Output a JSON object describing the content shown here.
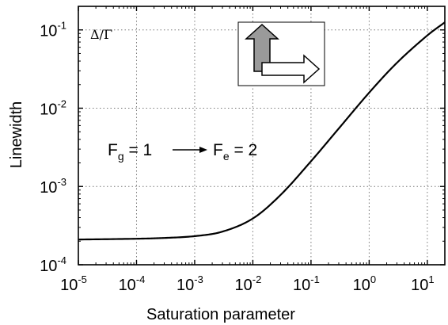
{
  "chart_data": {
    "type": "line",
    "xlabel": "Saturation parameter",
    "ylabel": "Linewidth",
    "x_scale": "log",
    "y_scale": "log",
    "xlim": [
      1e-05,
      20
    ],
    "ylim": [
      0.0001,
      0.2
    ],
    "grid": true,
    "grid_style": "dotted",
    "x_ticks": [
      {
        "value": 1e-05,
        "base": "10",
        "exp": "-5"
      },
      {
        "value": 0.0001,
        "base": "10",
        "exp": "-4"
      },
      {
        "value": 0.001,
        "base": "10",
        "exp": "-3"
      },
      {
        "value": 0.01,
        "base": "10",
        "exp": "-2"
      },
      {
        "value": 0.1,
        "base": "10",
        "exp": "-1"
      },
      {
        "value": 1,
        "base": "10",
        "exp": "0"
      },
      {
        "value": 10,
        "base": "10",
        "exp": "1"
      }
    ],
    "y_ticks": [
      {
        "value": 0.0001,
        "base": "10",
        "exp": "-4"
      },
      {
        "value": 0.001,
        "base": "10",
        "exp": "-3"
      },
      {
        "value": 0.01,
        "base": "10",
        "exp": "-2"
      },
      {
        "value": 0.1,
        "base": "10",
        "exp": "-1"
      }
    ],
    "series": [
      {
        "color": "#000000",
        "x": [
          1e-05,
          0.0001,
          0.0003,
          0.001,
          0.003,
          0.01,
          0.03,
          0.1,
          0.3,
          1,
          3,
          10,
          20
        ],
        "y": [
          0.00021,
          0.000215,
          0.00022,
          0.000232,
          0.000265,
          0.00039,
          0.00078,
          0.0021,
          0.0055,
          0.0158,
          0.038,
          0.085,
          0.125
        ]
      }
    ],
    "annotations": {
      "corner_label": "Δ/Γ",
      "transition": {
        "g_main": "F",
        "g_sub": "g",
        "g_val": " = 1",
        "e_main": "F",
        "e_sub": "e",
        "e_val": " = 2"
      }
    },
    "inset": {
      "kind": "polarization-arrows-diagram",
      "vertical_arrow_fill": "#9a9a9a",
      "horizontal_arrow_fill": "#ffffff"
    }
  }
}
